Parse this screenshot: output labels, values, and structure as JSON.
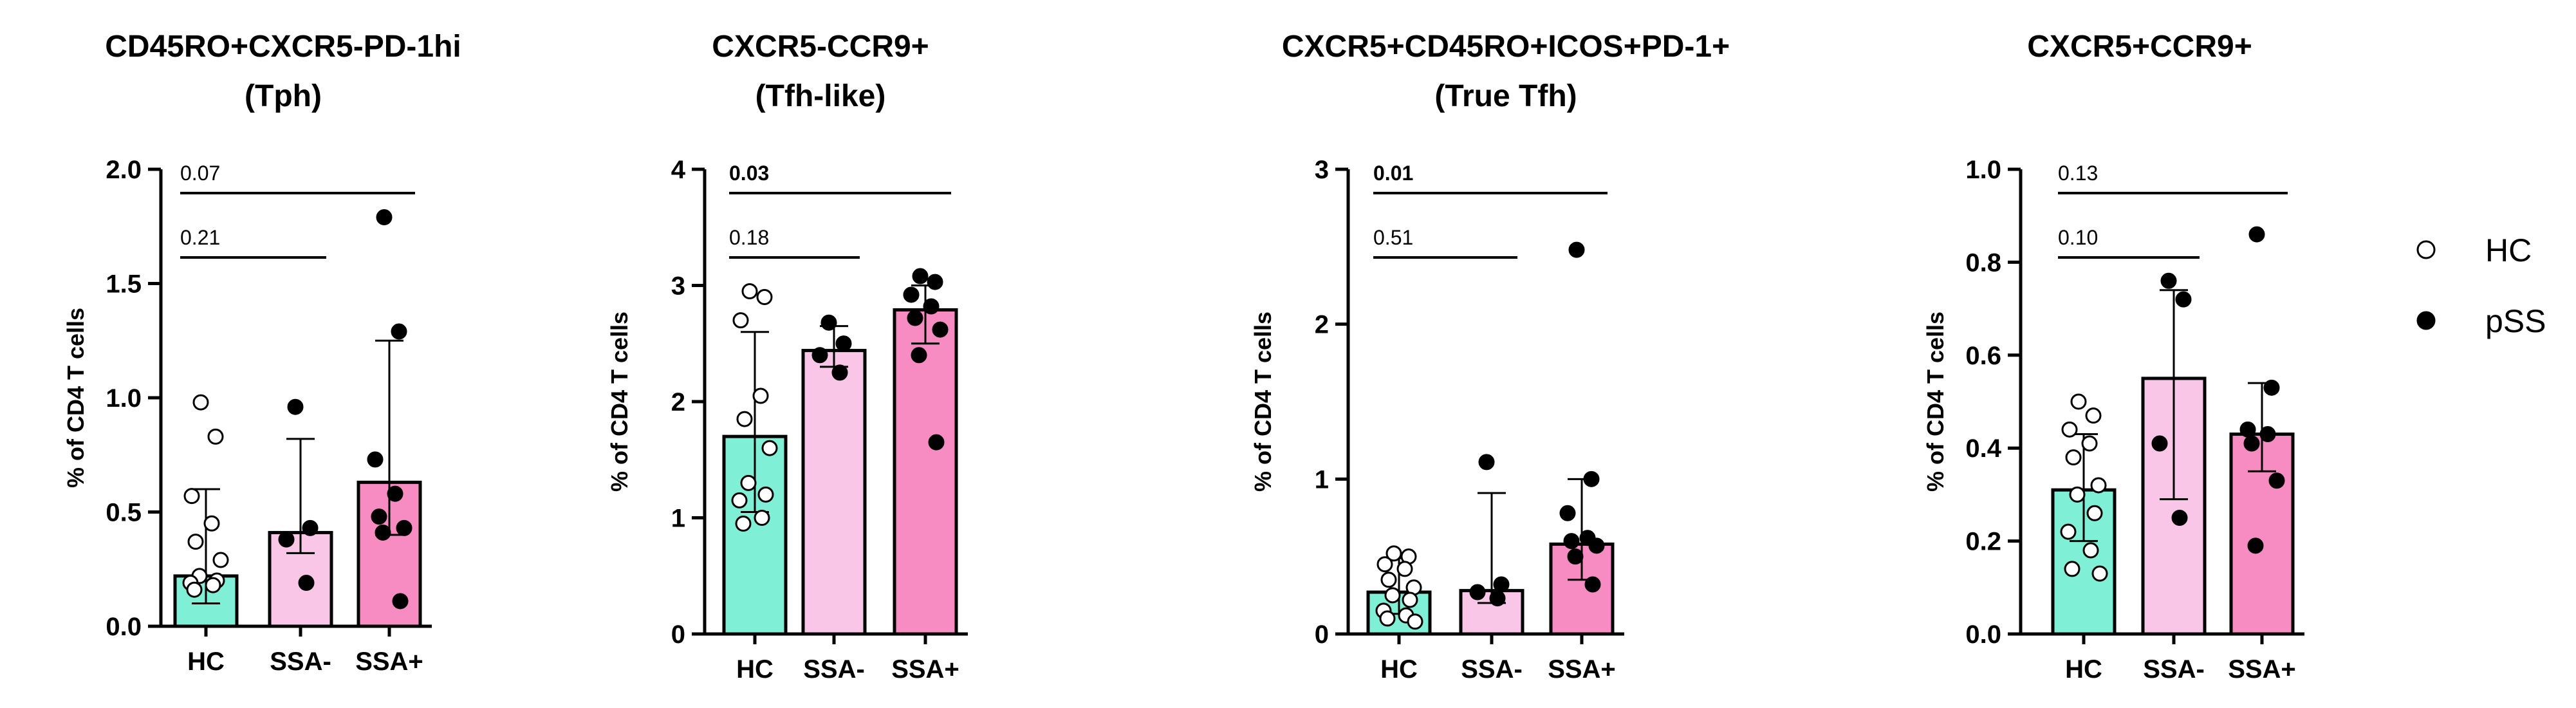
{
  "colors": {
    "HC": "#7FF0D6",
    "SSA-": "#F9C6E8",
    "SSA+": "#F78CC2",
    "axis": "#000000"
  },
  "legend": [
    {
      "label": "HC",
      "marker": "open-circle"
    },
    {
      "label": "pSS",
      "marker": "filled-circle"
    }
  ],
  "chart_data": [
    {
      "type": "bar",
      "title": [
        "CD45RO+CXCR5-PD-1hi",
        "(Tph)"
      ],
      "ylabel": "% of CD4 T cells",
      "categories": [
        "HC",
        "SSA-",
        "SSA+"
      ],
      "ylim": [
        0,
        2.0
      ],
      "yticks": [
        "0.0",
        "0.5",
        "1.0",
        "1.5",
        "2.0"
      ],
      "bars": [
        0.22,
        0.41,
        0.63
      ],
      "errors": [
        [
          0.1,
          0.6
        ],
        [
          0.32,
          0.82
        ],
        [
          0.4,
          1.25
        ]
      ],
      "points": [
        [
          0.98,
          0.83,
          0.57,
          0.45,
          0.37,
          0.29,
          0.22,
          0.2,
          0.19,
          0.18,
          0.16
        ],
        [
          0.96,
          0.43,
          0.38,
          0.19
        ],
        [
          1.79,
          1.29,
          0.73,
          0.58,
          0.48,
          0.43,
          0.41,
          0.11
        ]
      ],
      "comparisons": [
        {
          "from": "HC",
          "to": "SSA-",
          "p": "0.21",
          "bold": false
        },
        {
          "from": "HC",
          "to": "SSA+",
          "p": "0.07",
          "bold": false
        }
      ]
    },
    {
      "type": "bar",
      "title": [
        "CXCR5-CCR9+",
        "(Tfh-like)"
      ],
      "ylabel": "% of CD4 T cells",
      "categories": [
        "HC",
        "SSA-",
        "SSA+"
      ],
      "ylim": [
        0,
        4
      ],
      "yticks": [
        "0",
        "1",
        "2",
        "3",
        "4"
      ],
      "bars": [
        1.7,
        2.44,
        2.79
      ],
      "errors": [
        [
          1.05,
          2.6
        ],
        [
          2.3,
          2.65
        ],
        [
          2.5,
          3.0
        ]
      ],
      "points": [
        [
          2.95,
          2.9,
          2.7,
          2.05,
          1.85,
          1.6,
          1.3,
          1.2,
          1.15,
          1.0,
          0.95
        ],
        [
          2.68,
          2.5,
          2.4,
          2.25
        ],
        [
          3.08,
          3.03,
          2.92,
          2.82,
          2.72,
          2.62,
          2.4,
          1.65
        ]
      ],
      "comparisons": [
        {
          "from": "HC",
          "to": "SSA-",
          "p": "0.18",
          "bold": false
        },
        {
          "from": "HC",
          "to": "SSA+",
          "p": "0.03",
          "bold": true
        }
      ]
    },
    {
      "type": "bar",
      "title": [
        "CXCR5+CD45RO+ICOS+PD-1+",
        "(True Tfh)"
      ],
      "ylabel": "% of CD4 T cells",
      "categories": [
        "HC",
        "SSA-",
        "SSA+"
      ],
      "ylim": [
        0,
        3
      ],
      "yticks": [
        "0",
        "1",
        "2",
        "3"
      ],
      "bars": [
        0.27,
        0.28,
        0.58
      ],
      "errors": [
        [
          0.13,
          0.49
        ],
        [
          0.2,
          0.91
        ],
        [
          0.35,
          1.0
        ]
      ],
      "points": [
        [
          0.52,
          0.5,
          0.45,
          0.42,
          0.35,
          0.3,
          0.25,
          0.22,
          0.15,
          0.12,
          0.1,
          0.08
        ],
        [
          1.11,
          0.32,
          0.27,
          0.23
        ],
        [
          2.48,
          1.0,
          0.78,
          0.62,
          0.6,
          0.57,
          0.5,
          0.32
        ]
      ],
      "comparisons": [
        {
          "from": "HC",
          "to": "SSA-",
          "p": "0.51",
          "bold": false
        },
        {
          "from": "HC",
          "to": "SSA+",
          "p": "0.01",
          "bold": true
        }
      ]
    },
    {
      "type": "bar",
      "title": [
        "CXCR5+CCR9+"
      ],
      "ylabel": "% of CD4 T cells",
      "categories": [
        "HC",
        "SSA-",
        "SSA+"
      ],
      "ylim": [
        0,
        1.0
      ],
      "yticks": [
        "0.0",
        "0.2",
        "0.4",
        "0.6",
        "0.8",
        "1.0"
      ],
      "bars": [
        0.31,
        0.55,
        0.43
      ],
      "errors": [
        [
          0.2,
          0.43
        ],
        [
          0.29,
          0.74
        ],
        [
          0.35,
          0.54
        ]
      ],
      "points": [
        [
          0.5,
          0.47,
          0.44,
          0.41,
          0.38,
          0.32,
          0.3,
          0.26,
          0.22,
          0.18,
          0.14,
          0.13
        ],
        [
          0.76,
          0.72,
          0.41,
          0.25
        ],
        [
          0.86,
          0.53,
          0.44,
          0.43,
          0.41,
          0.33,
          0.19
        ]
      ],
      "comparisons": [
        {
          "from": "HC",
          "to": "SSA-",
          "p": "0.10",
          "bold": false
        },
        {
          "from": "HC",
          "to": "SSA+",
          "p": "0.13",
          "bold": false
        }
      ]
    }
  ]
}
